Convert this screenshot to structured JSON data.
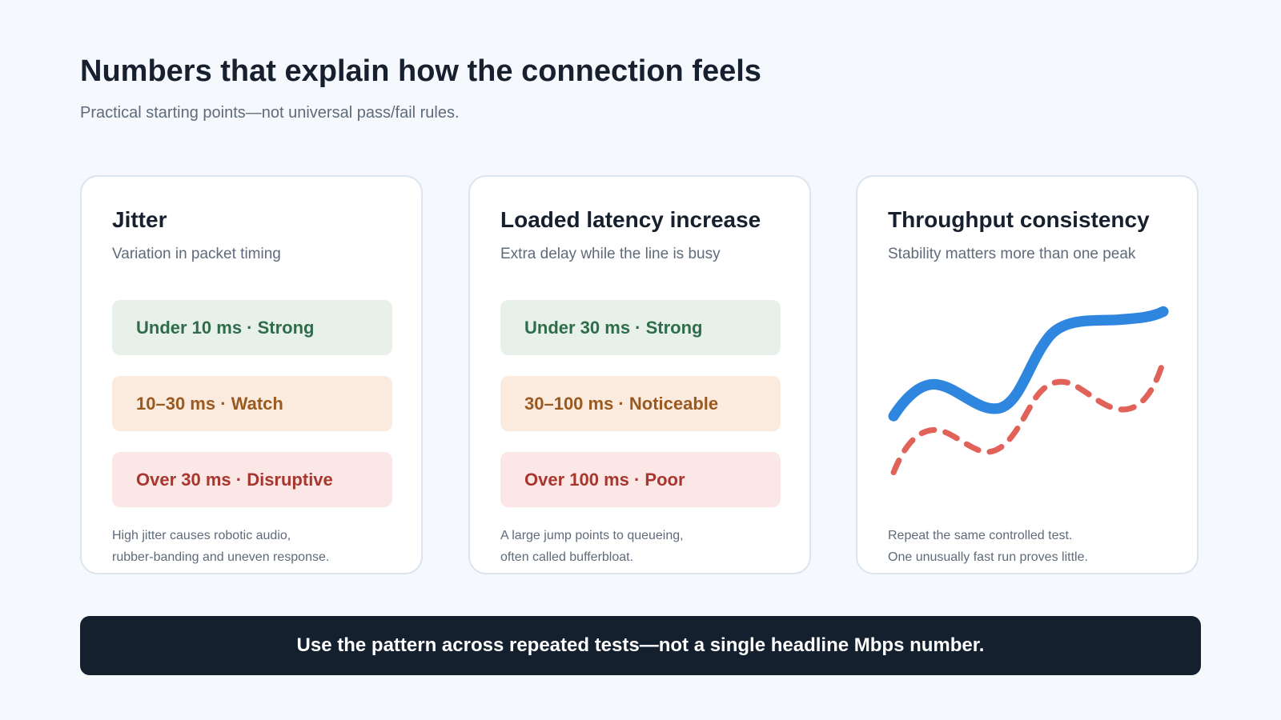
{
  "header": {
    "title": "Numbers that explain how the connection feels",
    "subtitle": "Practical starting points—not universal pass/fail rules."
  },
  "cards": [
    {
      "title": "Jitter",
      "subtitle": "Variation in packet timing",
      "levels": [
        "Under 10 ms · Strong",
        "10–30 ms · Watch",
        "Over 30 ms · Disruptive"
      ],
      "note": [
        "High jitter causes robotic audio,",
        "rubber-banding and uneven response."
      ]
    },
    {
      "title": "Loaded latency increase",
      "subtitle": "Extra delay while the line is busy",
      "levels": [
        "Under 30 ms · Strong",
        "30–100 ms · Noticeable",
        "Over 100 ms · Poor"
      ],
      "note": [
        "A large jump points to queueing,",
        "often called bufferbloat."
      ]
    },
    {
      "title": "Throughput consistency",
      "subtitle": "Stability matters more than one peak",
      "note": [
        "Repeat the same controlled test.",
        "One unusually fast run proves little."
      ]
    }
  ],
  "banner": "Use the pattern across repeated tests—not a single headline Mbps number."
}
